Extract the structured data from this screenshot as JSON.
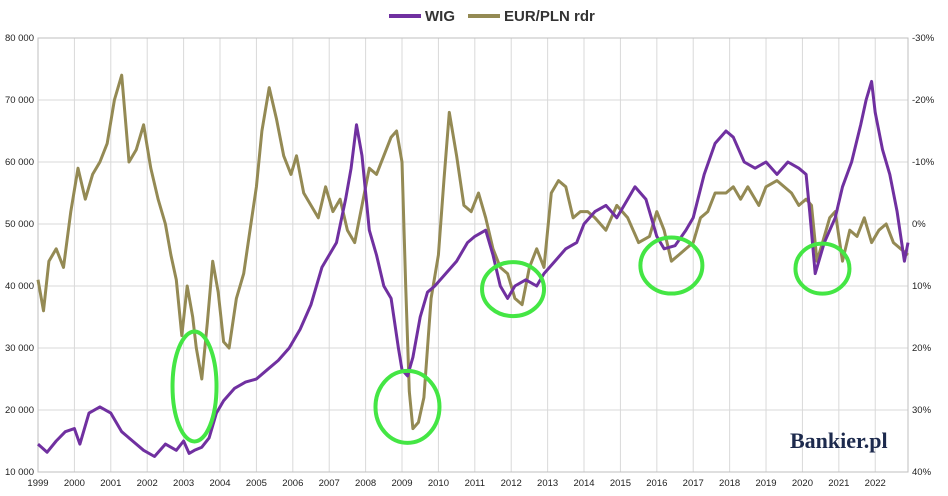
{
  "chart_data": {
    "type": "line",
    "title": "",
    "brand": "Bankier.pl",
    "x_range": [
      1999,
      2022.9
    ],
    "x_ticks": [
      "1999",
      "2000",
      "2001",
      "2002",
      "2003",
      "2004",
      "2005",
      "2006",
      "2007",
      "2008",
      "2009",
      "2010",
      "2011",
      "2012",
      "2013",
      "2014",
      "2015",
      "2016",
      "2017",
      "2018",
      "2019",
      "2020",
      "2021",
      "2022"
    ],
    "y_left": {
      "min": 10000,
      "max": 80000,
      "ticks": [
        "10 000",
        "20 000",
        "30 000",
        "40 000",
        "50 000",
        "60 000",
        "70 000",
        "80 000"
      ],
      "tick_values": [
        10000,
        20000,
        30000,
        40000,
        50000,
        60000,
        70000,
        80000
      ]
    },
    "y_right": {
      "min": -30,
      "max": 40,
      "reversed": true,
      "ticks": [
        "-30%",
        "-20%",
        "-10%",
        "0%",
        "10%",
        "20%",
        "30%",
        "40%"
      ],
      "tick_values": [
        -30,
        -20,
        -10,
        0,
        10,
        20,
        30,
        40
      ]
    },
    "colors": {
      "wig": "#7030a0",
      "eurpln": "#948a54",
      "circle": "#44e644",
      "grid": "#d9d9d9"
    },
    "series": [
      {
        "name": "WIG",
        "axis": "left",
        "x": [
          1999.0,
          1999.25,
          1999.5,
          1999.75,
          2000.0,
          2000.15,
          2000.4,
          2000.7,
          2001.0,
          2001.3,
          2001.6,
          2001.9,
          2002.2,
          2002.5,
          2002.8,
          2003.0,
          2003.15,
          2003.3,
          2003.5,
          2003.7,
          2003.9,
          2004.1,
          2004.4,
          2004.7,
          2005.0,
          2005.3,
          2005.6,
          2005.9,
          2006.2,
          2006.5,
          2006.8,
          2007.0,
          2007.2,
          2007.45,
          2007.6,
          2007.75,
          2007.9,
          2008.1,
          2008.3,
          2008.5,
          2008.7,
          2008.9,
          2009.0,
          2009.15,
          2009.3,
          2009.5,
          2009.7,
          2009.9,
          2010.2,
          2010.5,
          2010.8,
          2011.0,
          2011.3,
          2011.5,
          2011.7,
          2011.9,
          2012.1,
          2012.4,
          2012.7,
          2012.9,
          2013.2,
          2013.5,
          2013.8,
          2014.0,
          2014.3,
          2014.6,
          2014.9,
          2015.2,
          2015.4,
          2015.7,
          2016.0,
          2016.2,
          2016.5,
          2016.8,
          2017.0,
          2017.3,
          2017.6,
          2017.9,
          2018.1,
          2018.4,
          2018.7,
          2019.0,
          2019.3,
          2019.6,
          2019.9,
          2020.1,
          2020.2,
          2020.35,
          2020.6,
          2020.9,
          2021.1,
          2021.35,
          2021.6,
          2021.75,
          2021.9,
          2022.0,
          2022.2,
          2022.4,
          2022.6,
          2022.8,
          2022.9
        ],
        "values": [
          14500,
          13200,
          15000,
          16500,
          17000,
          14500,
          19500,
          20500,
          19500,
          16500,
          15000,
          13500,
          12500,
          14500,
          13500,
          15000,
          13000,
          13500,
          14000,
          15500,
          19500,
          21500,
          23500,
          24500,
          25000,
          26500,
          28000,
          30000,
          33000,
          37000,
          43000,
          45000,
          47000,
          54000,
          59000,
          66000,
          61000,
          49000,
          45000,
          40000,
          38000,
          30000,
          26500,
          25500,
          28500,
          35000,
          39000,
          40000,
          42000,
          44000,
          47000,
          48000,
          49000,
          45000,
          40000,
          38000,
          40000,
          41000,
          40000,
          42000,
          44000,
          46000,
          47000,
          50000,
          52000,
          53000,
          51000,
          54000,
          56000,
          54000,
          48000,
          46000,
          46500,
          49000,
          51000,
          58000,
          63000,
          65000,
          64000,
          60000,
          59000,
          60000,
          58000,
          60000,
          59000,
          58000,
          52000,
          42000,
          47000,
          51000,
          56000,
          60000,
          66000,
          70000,
          73000,
          68000,
          62000,
          58000,
          52000,
          44000,
          47000
        ]
      },
      {
        "name": "EUR/PLN rdr",
        "axis": "right",
        "x": [
          1999.0,
          1999.15,
          1999.3,
          1999.5,
          1999.7,
          1999.9,
          2000.1,
          2000.3,
          2000.5,
          2000.7,
          2000.9,
          2001.1,
          2001.3,
          2001.5,
          2001.7,
          2001.9,
          2002.1,
          2002.3,
          2002.5,
          2002.65,
          2002.8,
          2002.95,
          2003.1,
          2003.25,
          2003.35,
          2003.5,
          2003.65,
          2003.8,
          2003.95,
          2004.1,
          2004.25,
          2004.45,
          2004.65,
          2004.85,
          2005.0,
          2005.15,
          2005.35,
          2005.55,
          2005.75,
          2005.95,
          2006.1,
          2006.3,
          2006.5,
          2006.7,
          2006.9,
          2007.1,
          2007.3,
          2007.5,
          2007.7,
          2007.9,
          2008.1,
          2008.3,
          2008.5,
          2008.7,
          2008.85,
          2009.0,
          2009.1,
          2009.2,
          2009.3,
          2009.45,
          2009.6,
          2009.8,
          2010.0,
          2010.15,
          2010.3,
          2010.5,
          2010.7,
          2010.9,
          2011.1,
          2011.3,
          2011.5,
          2011.7,
          2011.9,
          2012.1,
          2012.3,
          2012.5,
          2012.7,
          2012.9,
          2013.1,
          2013.3,
          2013.5,
          2013.7,
          2013.9,
          2014.1,
          2014.3,
          2014.6,
          2014.9,
          2015.2,
          2015.5,
          2015.8,
          2016.0,
          2016.2,
          2016.4,
          2016.6,
          2016.8,
          2017.0,
          2017.2,
          2017.4,
          2017.6,
          2017.9,
          2018.1,
          2018.3,
          2018.5,
          2018.8,
          2019.0,
          2019.3,
          2019.5,
          2019.7,
          2019.9,
          2020.1,
          2020.25,
          2020.4,
          2020.6,
          2020.75,
          2020.9,
          2021.1,
          2021.3,
          2021.5,
          2021.7,
          2021.9,
          2022.1,
          2022.3,
          2022.5,
          2022.7,
          2022.9
        ],
        "values": [
          9,
          14,
          6,
          4,
          7,
          -2,
          -9,
          -4,
          -8,
          -10,
          -13,
          -20,
          -24,
          -10,
          -12,
          -16,
          -9,
          -4,
          0,
          5,
          9,
          18,
          10,
          15,
          20,
          25,
          16,
          6,
          11,
          19,
          20,
          12,
          8,
          0,
          -6,
          -15,
          -22,
          -17,
          -11,
          -8,
          -11,
          -5,
          -3,
          -1,
          -6,
          -2,
          -4,
          1,
          3,
          -3,
          -9,
          -8,
          -11,
          -14,
          -15,
          -10,
          10,
          27,
          33,
          32,
          28,
          12,
          5,
          -7,
          -18,
          -11,
          -3,
          -2,
          -5,
          -1,
          4,
          7,
          8,
          12,
          13,
          7,
          4,
          7,
          -5,
          -7,
          -6,
          -1,
          -2,
          -2,
          -1,
          1,
          -3,
          -1,
          3,
          2,
          -2,
          1,
          6,
          5,
          4,
          3,
          -1,
          -2,
          -5,
          -5,
          -6,
          -4,
          -6,
          -3,
          -6,
          -7,
          -6,
          -5,
          -3,
          -4,
          -3,
          6,
          2,
          -1,
          -2,
          6,
          1,
          2,
          -1,
          3,
          1,
          0,
          3,
          4,
          5
        ]
      }
    ],
    "annotations": [
      {
        "type": "circle",
        "x": 2003.3,
        "y_left": 23800
      },
      {
        "type": "circle",
        "x": 2009.15,
        "y_left": 20500
      },
      {
        "type": "circle",
        "x": 2012.05,
        "y_left": 39500
      },
      {
        "type": "circle",
        "x": 2016.4,
        "y_left": 43300
      },
      {
        "type": "circle",
        "x": 2020.55,
        "y_left": 42800
      }
    ]
  }
}
